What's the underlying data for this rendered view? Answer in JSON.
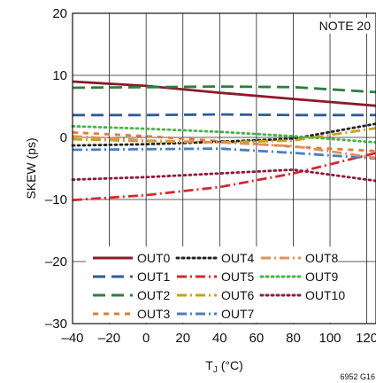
{
  "chart_data": {
    "type": "line",
    "xlabel_main": "T",
    "xlabel_sub": "J",
    "xlabel_unit": " (°C)",
    "ylabel": "SKEW (ps)",
    "xlim": [
      -40,
      125
    ],
    "ylim": [
      -30,
      20
    ],
    "xticks": [
      -40,
      -20,
      0,
      20,
      40,
      60,
      80,
      100,
      120
    ],
    "xtick_labels": [
      "–40",
      "–20",
      "0",
      "20",
      "40",
      "60",
      "80",
      "100",
      "120"
    ],
    "yticks": [
      -30,
      -20,
      -10,
      0,
      10,
      20
    ],
    "ytick_labels": [
      "–30",
      "–20",
      "–10",
      "0",
      "10",
      "20"
    ],
    "grid": true,
    "legend_position": "bottom-center",
    "note": "NOTE 20",
    "figure_id": "6952 G16",
    "series": [
      {
        "name": "OUT0",
        "color": "#8B1A2B",
        "dash": "solid",
        "x": [
          -40,
          0,
          40,
          80,
          125
        ],
        "y": [
          9,
          8.3,
          7.2,
          6.2,
          5.1
        ]
      },
      {
        "name": "OUT1",
        "color": "#2E5B9A",
        "dash": "longdash",
        "x": [
          -40,
          0,
          40,
          80,
          125
        ],
        "y": [
          3.6,
          3.6,
          3.7,
          3.6,
          3.6
        ]
      },
      {
        "name": "OUT2",
        "color": "#2F7D3A",
        "dash": "longdash",
        "x": [
          -40,
          0,
          40,
          80,
          125
        ],
        "y": [
          8,
          8.1,
          8.2,
          8.1,
          7.3
        ]
      },
      {
        "name": "OUT3",
        "color": "#E07B39",
        "dash": "dash",
        "x": [
          -40,
          0,
          40,
          80,
          125
        ],
        "y": [
          0.8,
          0.2,
          -0.6,
          -1.5,
          -2.2
        ]
      },
      {
        "name": "OUT4",
        "color": "#222222",
        "dash": "dot",
        "x": [
          -40,
          0,
          40,
          80,
          125
        ],
        "y": [
          -1.3,
          -1.1,
          -0.7,
          -0.2,
          2.2
        ]
      },
      {
        "name": "OUT5",
        "color": "#D12B2F",
        "dash": "dashdot",
        "x": [
          -40,
          0,
          40,
          80,
          125
        ],
        "y": [
          -10.1,
          -9.3,
          -8,
          -5.8,
          -2.5
        ]
      },
      {
        "name": "OUT6",
        "color": "#C8A21A",
        "dash": "dashdot",
        "x": [
          -40,
          0,
          40,
          80,
          125
        ],
        "y": [
          -0.3,
          -0.6,
          -0.8,
          -0.5,
          1.5
        ]
      },
      {
        "name": "OUT7",
        "color": "#4A7FC1",
        "dash": "dashdot",
        "x": [
          -40,
          0,
          40,
          80,
          125
        ],
        "y": [
          -2,
          -1.9,
          -1.8,
          -2.5,
          -3.4
        ]
      },
      {
        "name": "OUT8",
        "color": "#E0915A",
        "dash": "dashdot",
        "x": [
          -40,
          0,
          40,
          80,
          125
        ],
        "y": [
          0.2,
          -0.5,
          -0.8,
          -1.4,
          -3.3
        ]
      },
      {
        "name": "OUT9",
        "color": "#4CB24C",
        "dash": "dot",
        "x": [
          -40,
          0,
          40,
          80,
          125
        ],
        "y": [
          1.8,
          1.4,
          0.9,
          0.2,
          -0.8
        ]
      },
      {
        "name": "OUT10",
        "color": "#8E1B3A",
        "dash": "dot",
        "x": [
          -40,
          0,
          40,
          80,
          125
        ],
        "y": [
          -6.8,
          -6.4,
          -5.8,
          -5.2,
          -7
        ]
      }
    ]
  }
}
